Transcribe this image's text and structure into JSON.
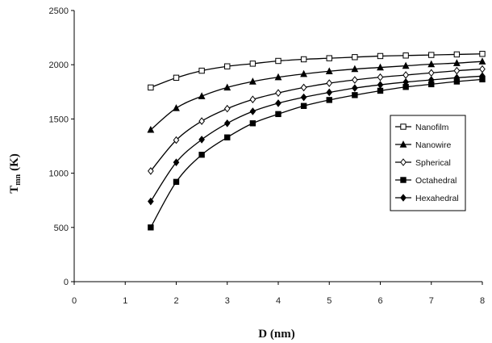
{
  "chart_data": {
    "type": "line",
    "xlabel": {
      "main": "D (nm)"
    },
    "ylabel": {
      "main": "T",
      "subscript": "mn",
      "unit": "(K)"
    },
    "xlim": [
      0,
      8
    ],
    "ylim": [
      0,
      2500
    ],
    "x_ticks": [
      "0",
      "1",
      "2",
      "3",
      "4",
      "5",
      "6",
      "7",
      "8"
    ],
    "y_ticks": [
      "0",
      "500",
      "1000",
      "1500",
      "2000",
      "2500"
    ],
    "grid": false,
    "legend_position": "right",
    "x": [
      1.5,
      2.0,
      2.5,
      3.0,
      3.5,
      4.0,
      4.5,
      5.0,
      5.5,
      6.0,
      6.5,
      7.0,
      7.5,
      8.0
    ],
    "series": [
      {
        "name": "Nanofilm",
        "marker": "open-square",
        "values": [
          1790,
          1880,
          1945,
          1985,
          2010,
          2035,
          2050,
          2060,
          2070,
          2080,
          2085,
          2090,
          2095,
          2100
        ]
      },
      {
        "name": "Nanowire",
        "marker": "filled-triangle",
        "values": [
          1400,
          1600,
          1710,
          1790,
          1845,
          1885,
          1915,
          1940,
          1960,
          1975,
          1990,
          2005,
          2015,
          2030
        ]
      },
      {
        "name": "Spherical",
        "marker": "open-diamond",
        "values": [
          1020,
          1305,
          1480,
          1595,
          1680,
          1740,
          1790,
          1830,
          1860,
          1885,
          1905,
          1925,
          1945,
          1960
        ]
      },
      {
        "name": "Octahedral",
        "marker": "filled-square",
        "values": [
          500,
          920,
          1170,
          1330,
          1460,
          1545,
          1620,
          1675,
          1720,
          1760,
          1795,
          1820,
          1845,
          1865
        ]
      },
      {
        "name": "Hexahedral",
        "marker": "filled-diamond",
        "values": [
          740,
          1100,
          1310,
          1460,
          1570,
          1645,
          1700,
          1745,
          1785,
          1815,
          1840,
          1860,
          1880,
          1895
        ]
      }
    ]
  }
}
